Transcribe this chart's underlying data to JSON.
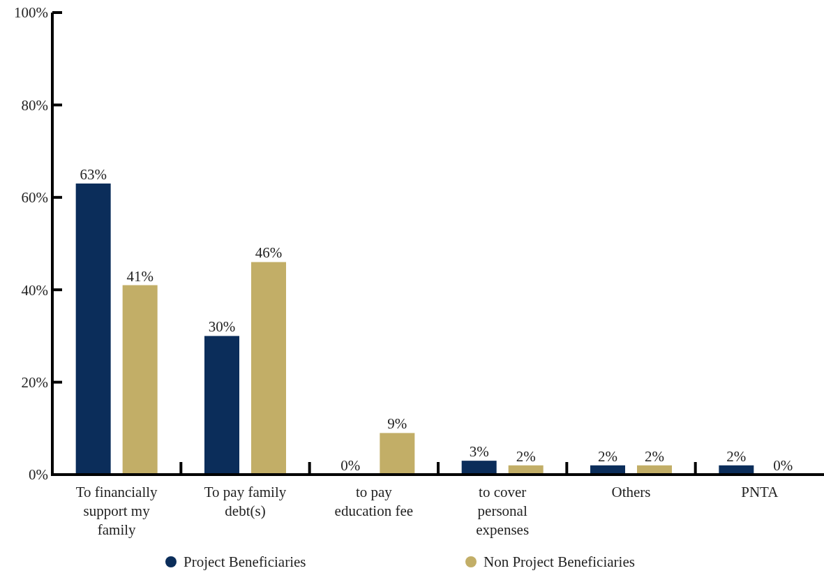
{
  "chart_data": {
    "type": "bar",
    "categories": [
      "To financially support my family",
      "To pay family debt(s)",
      "to pay education fee",
      "to cover personal expenses",
      "Others",
      "PNTA"
    ],
    "series": [
      {
        "name": "Project Beneficiaries",
        "color": "#0b2d5a",
        "values": [
          63,
          30,
          0,
          3,
          2,
          2
        ],
        "value_labels": [
          "63%",
          "30%",
          "0%",
          "3%",
          "2%",
          "2%"
        ]
      },
      {
        "name": "Non Project Beneficiaries",
        "color": "#c2ae67",
        "values": [
          41,
          46,
          9,
          2,
          2,
          0
        ],
        "value_labels": [
          "41%",
          "46%",
          "9%",
          "2%",
          "2%",
          "0%"
        ]
      }
    ],
    "ylim": [
      0,
      100
    ],
    "yticks": [
      {
        "value": 0,
        "label": "0%"
      },
      {
        "value": 20,
        "label": "20%"
      },
      {
        "value": 40,
        "label": "40%"
      },
      {
        "value": 60,
        "label": "60%"
      },
      {
        "value": 80,
        "label": "80%"
      },
      {
        "value": 100,
        "label": "100%"
      }
    ],
    "grid": false,
    "legend": "bottom"
  }
}
